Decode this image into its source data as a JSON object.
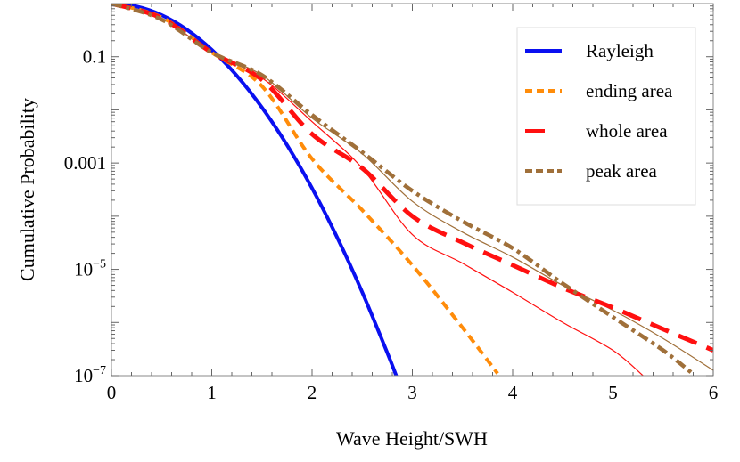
{
  "chart_data": {
    "type": "line",
    "title": "",
    "xlabel": "Wave Height/SWH",
    "ylabel": "Cumulative Probability",
    "xlim": [
      0,
      6
    ],
    "ylim": [
      1e-07,
      1
    ],
    "yscale": "log",
    "grid": false,
    "legend_position": "top-right",
    "x_ticks": [
      "0",
      "1",
      "2",
      "3",
      "4",
      "5",
      "6"
    ],
    "y_ticks": [
      {
        "value": 0.1,
        "base": "0.1",
        "exp": ""
      },
      {
        "value": 0.001,
        "base": "0.001",
        "exp": ""
      },
      {
        "value": 1e-05,
        "base": "10",
        "exp": "−5"
      },
      {
        "value": 1e-07,
        "base": "10",
        "exp": "−7"
      }
    ],
    "series": [
      {
        "name": "Rayleigh",
        "color": "#0a10f0",
        "style": "solid-thick",
        "x": [
          0,
          0.25,
          0.5,
          0.75,
          1,
          1.25,
          1.5,
          1.75,
          2,
          2.25,
          2.5,
          2.75,
          2.84
        ],
        "y": [
          1,
          0.8825,
          0.6065,
          0.3247,
          0.1353,
          0.04394,
          0.01111,
          0.002187,
          0.0003355,
          4e-05,
          3.727e-06,
          2.7e-07,
          9.9e-08
        ]
      },
      {
        "name": "ending area",
        "color": "#ff8c0a",
        "style": "dashed-thick",
        "x": [
          0,
          0.5,
          1,
          1.5,
          2,
          2.5,
          3,
          3.5,
          3.85
        ],
        "y": [
          1,
          0.55,
          0.12,
          0.028,
          0.0012,
          0.00013,
          1.2e-05,
          8e-07,
          1.1e-07
        ]
      },
      {
        "name": "whole area",
        "color": "#ff1010",
        "style": "longdash-thick",
        "x": [
          0,
          0.5,
          1,
          1.5,
          2,
          2.5,
          3,
          3.5,
          4,
          4.5,
          5,
          5.5,
          6
        ],
        "y": [
          1,
          0.53,
          0.12,
          0.037,
          0.0035,
          0.0008,
          0.0001,
          3.2e-05,
          1.2e-05,
          4.5e-06,
          1.9e-06,
          7.5e-07,
          3e-07
        ]
      },
      {
        "name": "peak area",
        "color": "#a0703a",
        "style": "dotdash-thick",
        "x": [
          0,
          0.5,
          1,
          1.5,
          2,
          2.5,
          3,
          3.5,
          4,
          4.5,
          5,
          5.5,
          5.8
        ],
        "y": [
          1,
          0.5,
          0.12,
          0.045,
          0.008,
          0.0016,
          0.0003,
          8e-05,
          2.5e-05,
          5.4e-06,
          1.26e-06,
          3e-07,
          1.07e-07
        ]
      },
      {
        "color": "#ff1010",
        "style": "solid-thin",
        "x": [
          0,
          0.5,
          1,
          1.5,
          2,
          2.5,
          3,
          3.5,
          4,
          4.5,
          5,
          5.3
        ],
        "y": [
          1,
          0.53,
          0.12,
          0.04,
          0.006,
          0.0008,
          4.5e-05,
          1.3e-05,
          3.7e-06,
          1e-06,
          3e-07,
          1e-07
        ]
      },
      {
        "color": "#a0703a",
        "style": "solid-thin",
        "x": [
          0,
          0.5,
          1,
          1.5,
          2,
          2.5,
          3,
          3.5,
          4,
          4.5,
          5,
          5.5,
          6
        ],
        "y": [
          1,
          0.52,
          0.12,
          0.045,
          0.007,
          0.0015,
          0.00019,
          5e-05,
          1.7e-05,
          5e-06,
          1.7e-06,
          5e-07,
          1.26e-07
        ]
      }
    ]
  }
}
